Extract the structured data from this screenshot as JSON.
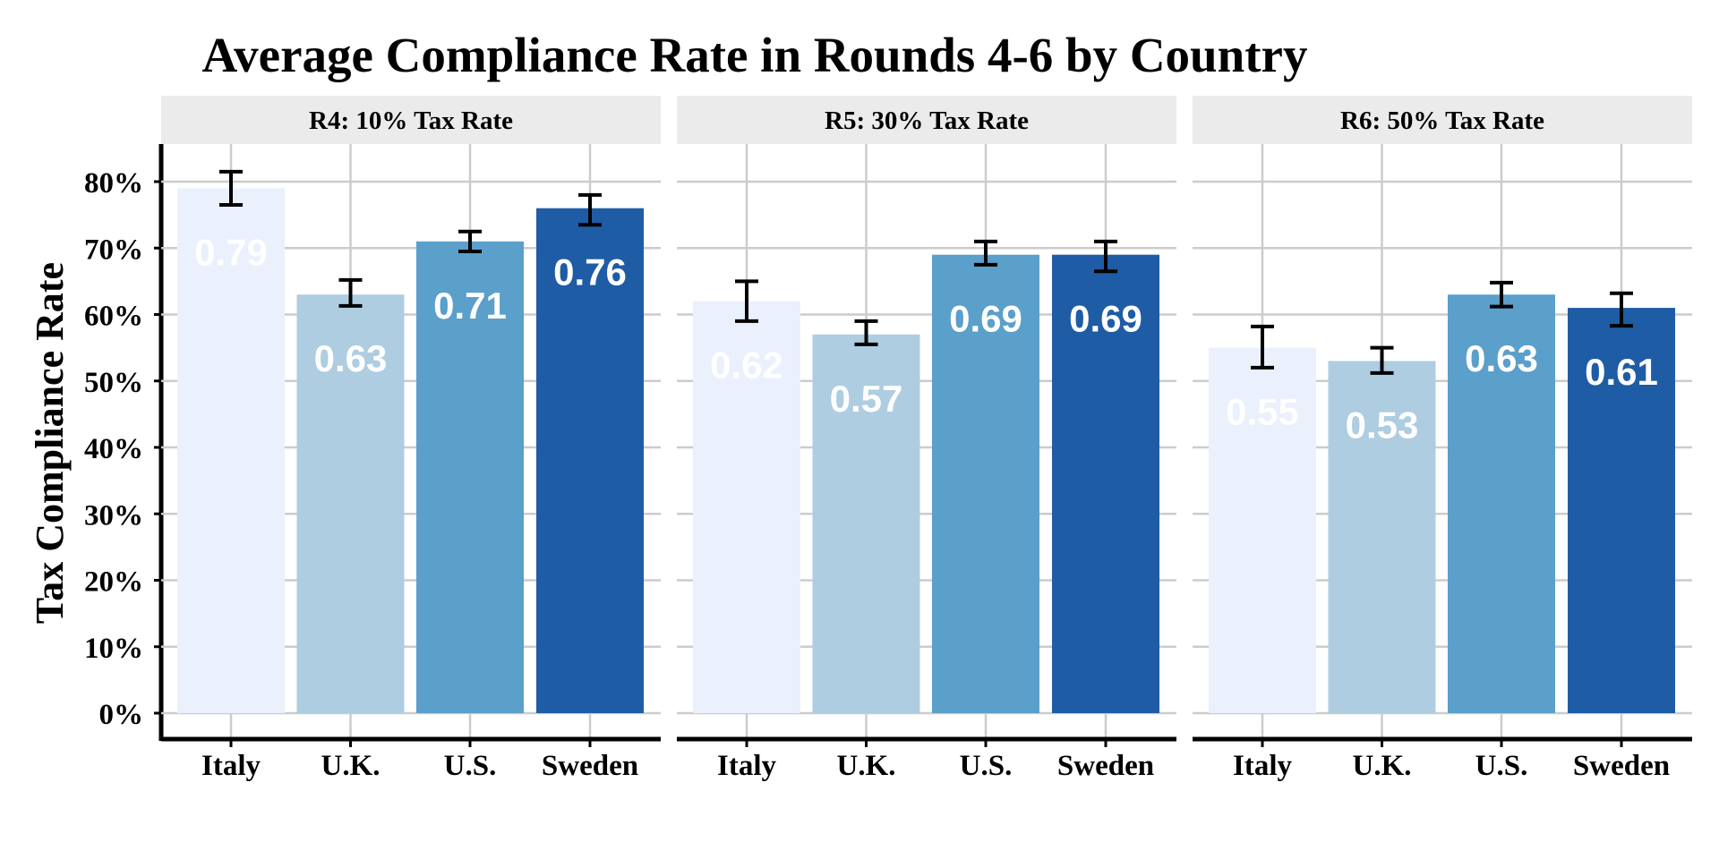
{
  "chart_data": {
    "type": "bar",
    "title": "Average Compliance Rate in Rounds 4-6 by Country",
    "xlabel": "",
    "ylabel": "Tax Compliance Rate",
    "ylim": [
      0,
      0.8
    ],
    "y_ticks": [
      "0%",
      "10%",
      "20%",
      "30%",
      "40%",
      "50%",
      "60%",
      "70%",
      "80%"
    ],
    "categories": [
      "Italy",
      "U.K.",
      "U.S.",
      "Sweden"
    ],
    "colors": [
      "#eaf0fc",
      "#aecde1",
      "#5b9fcb",
      "#1f5ca6"
    ],
    "grid": true,
    "legend": "none",
    "panels": [
      {
        "label": "R4: 10% Tax Rate",
        "values": [
          0.79,
          0.63,
          0.71,
          0.76
        ],
        "labels": [
          "0.79",
          "0.63",
          "0.71",
          "0.76"
        ],
        "err_low": [
          0.765,
          0.613,
          0.695,
          0.735
        ],
        "err_high": [
          0.815,
          0.652,
          0.725,
          0.78
        ]
      },
      {
        "label": "R5: 30% Tax Rate",
        "values": [
          0.62,
          0.57,
          0.69,
          0.69
        ],
        "labels": [
          "0.62",
          "0.57",
          "0.69",
          "0.69"
        ],
        "err_low": [
          0.59,
          0.555,
          0.675,
          0.665
        ],
        "err_high": [
          0.65,
          0.59,
          0.71,
          0.71
        ]
      },
      {
        "label": "R6: 50% Tax Rate",
        "values": [
          0.55,
          0.53,
          0.63,
          0.61
        ],
        "labels": [
          "0.55",
          "0.53",
          "0.63",
          "0.61"
        ],
        "err_low": [
          0.52,
          0.512,
          0.612,
          0.583
        ],
        "err_high": [
          0.582,
          0.55,
          0.648,
          0.632
        ]
      }
    ]
  }
}
